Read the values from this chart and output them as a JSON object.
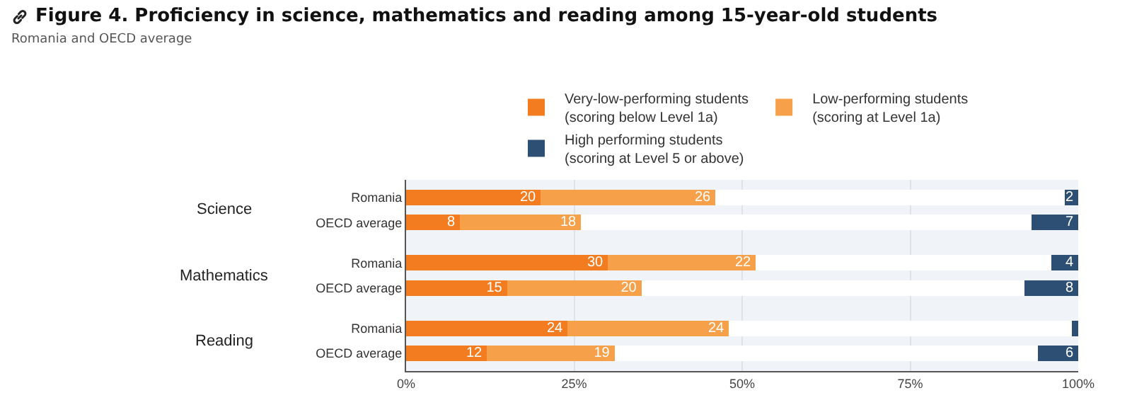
{
  "chart_data": {
    "type": "bar",
    "orientation": "horizontal",
    "stacked": true,
    "title": "Figure 4. Proficiency in science, mathematics and reading among 15-year-old students",
    "subtitle": "Romania and OECD average",
    "categories": [
      "Romania",
      "OECD average",
      "Romania",
      "OECD average",
      "Romania",
      "OECD average"
    ],
    "annotations": [
      "Science",
      "Mathematics",
      "Reading"
    ],
    "series": [
      {
        "name": "Very-low-performing students\n(scoring below Level 1a)",
        "color": "#f47c20",
        "values": [
          20,
          8,
          30,
          15,
          24,
          12
        ]
      },
      {
        "name": "Low-performing students\n(scoring at Level 1a)",
        "color": "#f7a04a",
        "values": [
          26,
          18,
          22,
          20,
          24,
          19
        ]
      },
      {
        "color": "#ffffff",
        "values": [
          52,
          67,
          44,
          57,
          51,
          63
        ],
        "value_labels": [
          null,
          null,
          null,
          null,
          null,
          null
        ]
      },
      {
        "name": "High performing students\n(scoring at Level 5 or above)",
        "color": "#2c4f73",
        "values": [
          2,
          7,
          4,
          8,
          1,
          6
        ],
        "value_labels": [
          "2",
          "7",
          "4",
          "8",
          null,
          "6"
        ]
      }
    ],
    "xlim": [
      0,
      100
    ],
    "xticks": [
      {
        "value": 0,
        "label": "0%"
      },
      {
        "value": 25,
        "label": "25%"
      },
      {
        "value": 50,
        "label": "50%"
      },
      {
        "value": 75,
        "label": "75%"
      },
      {
        "value": 100,
        "label": "100%"
      }
    ],
    "data_labels": true,
    "grid": "x",
    "legend": "top"
  }
}
